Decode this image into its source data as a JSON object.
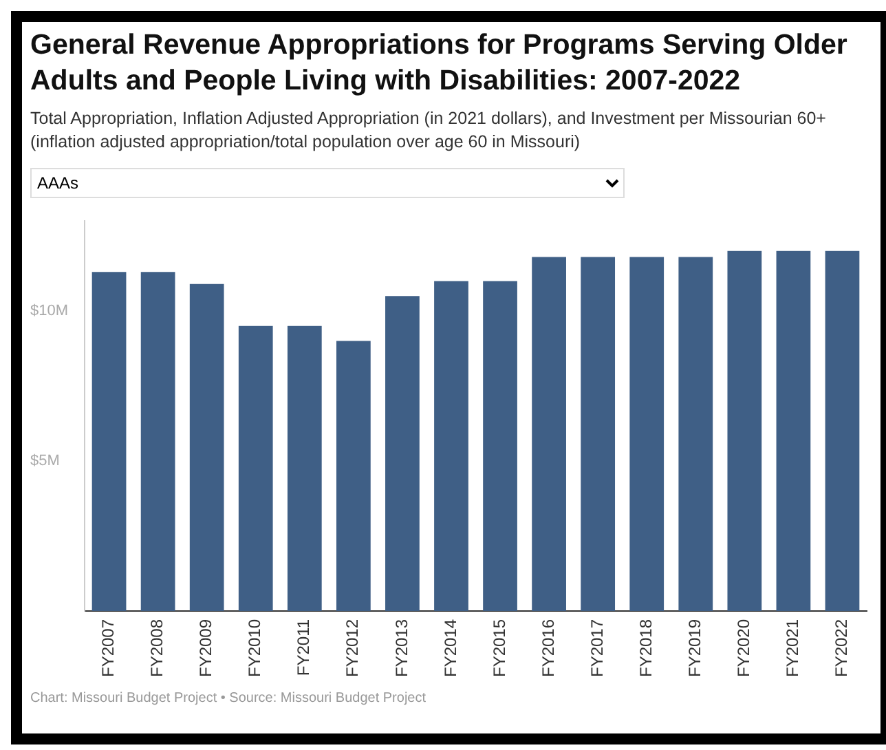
{
  "chart_data": {
    "type": "bar",
    "title": "General Revenue Appropriations for Programs Serving Older Adults and People Living with Disabilities: 2007-2022",
    "subtitle": "Total Appropriation, Inflation Adjusted Appropriation (in 2021 dollars), and Investment per Missourian 60+ (inflation adjusted appropriation/total population over age 60 in Missouri)",
    "categories": [
      "FY2007",
      "FY2008",
      "FY2009",
      "FY2010",
      "FY2011",
      "FY2012",
      "FY2013",
      "FY2014",
      "FY2015",
      "FY2016",
      "FY2017",
      "FY2018",
      "FY2019",
      "FY2020",
      "FY2021",
      "FY2022"
    ],
    "values": [
      11.3,
      11.3,
      10.9,
      9.5,
      9.5,
      9.0,
      10.5,
      11.0,
      11.0,
      11.8,
      11.8,
      11.8,
      11.8,
      12.0,
      12.0,
      12.0
    ],
    "color": "#3f5f86",
    "ylim": [
      0,
      13
    ],
    "yticks": [
      {
        "value": 5,
        "label": "$5M"
      },
      {
        "value": 10,
        "label": "$10M"
      }
    ],
    "grid": false,
    "legend": false,
    "annotations": [
      "AAAs",
      "Chart: Missouri Budget Project • Source: Missouri Budget Project"
    ]
  }
}
